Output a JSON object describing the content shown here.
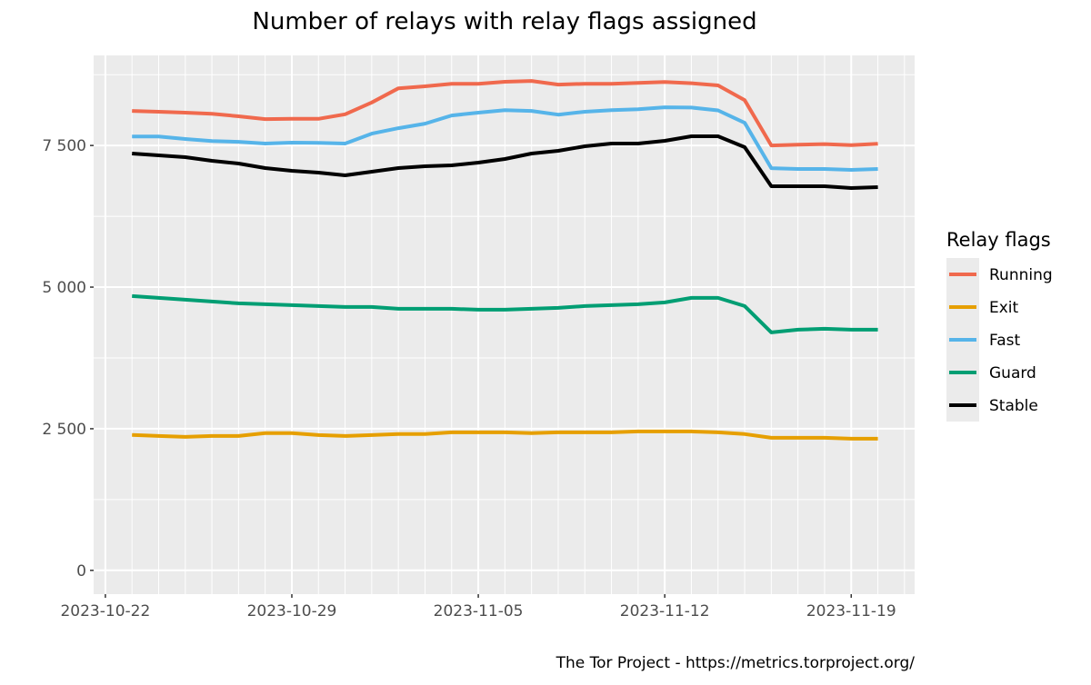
{
  "chart_data": {
    "type": "line",
    "title": "Number of relays with relay flags assigned",
    "xlabel": "",
    "ylabel": "",
    "caption": "The Tor Project - https://metrics.torproject.org/",
    "x": [
      "2023-10-23",
      "2023-10-24",
      "2023-10-25",
      "2023-10-26",
      "2023-10-27",
      "2023-10-28",
      "2023-10-29",
      "2023-10-30",
      "2023-10-31",
      "2023-11-01",
      "2023-11-02",
      "2023-11-03",
      "2023-11-04",
      "2023-11-05",
      "2023-11-06",
      "2023-11-07",
      "2023-11-08",
      "2023-11-09",
      "2023-11-10",
      "2023-11-11",
      "2023-11-12",
      "2023-11-13",
      "2023-11-14",
      "2023-11-15",
      "2023-11-16",
      "2023-11-17",
      "2023-11-18",
      "2023-11-19",
      "2023-11-20"
    ],
    "x_ticks": [
      "2023-10-22",
      "2023-10-29",
      "2023-11-05",
      "2023-11-12",
      "2023-11-19"
    ],
    "y_ticks": [
      0,
      2500,
      5000,
      7500
    ],
    "y_tick_labels": [
      "0",
      "2 500",
      "5 000",
      "7 500"
    ],
    "ylim": [
      -420,
      9090
    ],
    "xlim": [
      "2023-10-21",
      "2023-11-21"
    ],
    "grid": true,
    "legend": {
      "title": "Relay flags",
      "placement": "right"
    },
    "series": [
      {
        "name": "Running",
        "color": "#F0694D",
        "values": [
          8110,
          8095,
          8080,
          8060,
          8015,
          7965,
          7970,
          7970,
          8050,
          8260,
          8510,
          8545,
          8590,
          8590,
          8625,
          8640,
          8575,
          8590,
          8590,
          8605,
          8620,
          8600,
          8560,
          8300,
          7500,
          7515,
          7525,
          7505,
          7530
        ]
      },
      {
        "name": "Exit",
        "color": "#E69F00",
        "values": [
          2390,
          2372,
          2356,
          2372,
          2372,
          2421,
          2421,
          2388,
          2372,
          2388,
          2405,
          2405,
          2437,
          2437,
          2437,
          2421,
          2437,
          2437,
          2437,
          2453,
          2453,
          2453,
          2437,
          2405,
          2340,
          2340,
          2340,
          2324,
          2324
        ]
      },
      {
        "name": "Fast",
        "color": "#56B4E9",
        "values": [
          7660,
          7660,
          7615,
          7580,
          7565,
          7535,
          7550,
          7545,
          7535,
          7710,
          7805,
          7885,
          8030,
          8080,
          8125,
          8110,
          8045,
          8095,
          8125,
          8140,
          8175,
          8170,
          8120,
          7900,
          7100,
          7085,
          7085,
          7070,
          7085
        ]
      },
      {
        "name": "Guard",
        "color": "#009E73",
        "values": [
          4841,
          4809,
          4777,
          4745,
          4713,
          4697,
          4681,
          4665,
          4649,
          4649,
          4617,
          4617,
          4617,
          4601,
          4601,
          4617,
          4633,
          4665,
          4681,
          4697,
          4729,
          4809,
          4809,
          4665,
          4200,
          4248,
          4264,
          4248,
          4248
        ]
      },
      {
        "name": "Stable",
        "color": "#000000",
        "values": [
          7358,
          7326,
          7294,
          7230,
          7182,
          7101,
          7053,
          7021,
          6973,
          7037,
          7101,
          7133,
          7149,
          7197,
          7262,
          7358,
          7406,
          7486,
          7534,
          7534,
          7582,
          7662,
          7662,
          7470,
          6781,
          6781,
          6781,
          6749,
          6765
        ]
      }
    ]
  }
}
